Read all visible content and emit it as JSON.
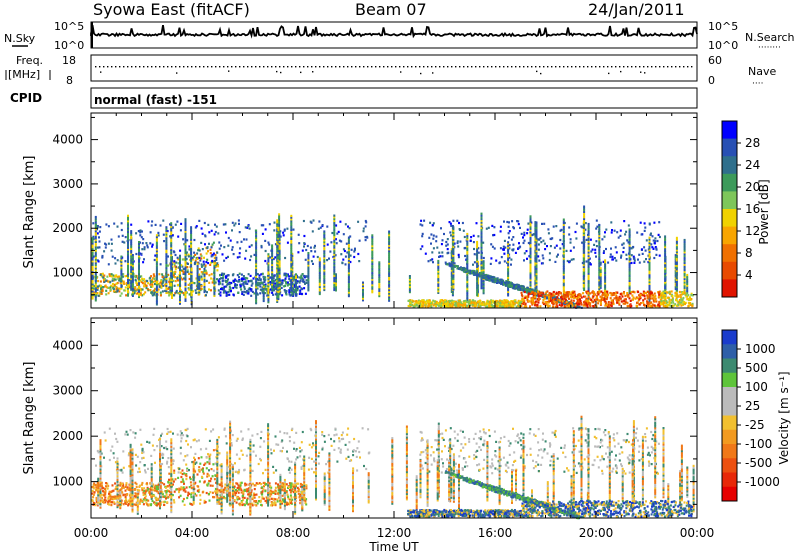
{
  "header": {
    "station": "Syowa East (fitACF)",
    "beam": "Beam 07",
    "date": "24/Jan/2011"
  },
  "top_panels": {
    "nsky_label": "N.Sky",
    "nsearch_label": "N.Search",
    "nsearch_legend": "········",
    "nsky_ticks": [
      "10^5",
      "10^0"
    ],
    "nsearch_ticks": [
      "10^5",
      "10^0"
    ],
    "freq_label_1": "Freq.",
    "freq_label_2": "[MHz]",
    "freq_ticks": [
      "18",
      "8"
    ],
    "nave_label": "Nave",
    "nave_legend": "····",
    "nave_ticks": [
      "60",
      "0"
    ],
    "cpid_label": "CPID",
    "cpid_text": "normal (fast) -151"
  },
  "chart_data": [
    {
      "type": "heatmap",
      "name": "power",
      "ylabel": "Slant Range [km]",
      "xlabel": "Time UT",
      "y_ticks": [
        1000,
        2000,
        3000,
        4000
      ],
      "ylim": [
        200,
        4600
      ],
      "x_ticks": [
        "00:00",
        "04:00",
        "08:00",
        "12:00",
        "16:00",
        "20:00",
        "00:00"
      ],
      "xlim_hours": [
        0,
        24
      ],
      "colorbar_label": "Power [dB]",
      "colorbar_ticks": [
        "4",
        "8",
        "12",
        "16",
        "20",
        "24",
        "28"
      ],
      "colorbar_colors": [
        "#0000ff",
        "#2850b4",
        "#2f6f8c",
        "#3c9a5a",
        "#7ec65a",
        "#f0d200",
        "#f8a500",
        "#f07000",
        "#e84a00",
        "#e01400"
      ]
    },
    {
      "type": "heatmap",
      "name": "velocity",
      "ylabel": "Slant Range [km]",
      "xlabel": "Time UT",
      "y_ticks": [
        1000,
        2000,
        3000,
        4000
      ],
      "ylim": [
        200,
        4600
      ],
      "x_ticks": [
        "00:00",
        "04:00",
        "08:00",
        "12:00",
        "16:00",
        "20:00",
        "00:00"
      ],
      "xlim_hours": [
        0,
        24
      ],
      "colorbar_label": "Velocity [m s⁻¹]",
      "colorbar_ticks": [
        "1000",
        "500",
        "100",
        "25",
        "-25",
        "-100",
        "-500",
        "-1000"
      ],
      "colorbar_colors": [
        "#1a3ccc",
        "#2e5fa8",
        "#3c8a70",
        "#5ec43a",
        "#bbbbbb",
        "#bbbbbb",
        "#f2c030",
        "#f29a20",
        "#f07818",
        "#ec5010",
        "#e82808",
        "#e60000"
      ]
    }
  ]
}
